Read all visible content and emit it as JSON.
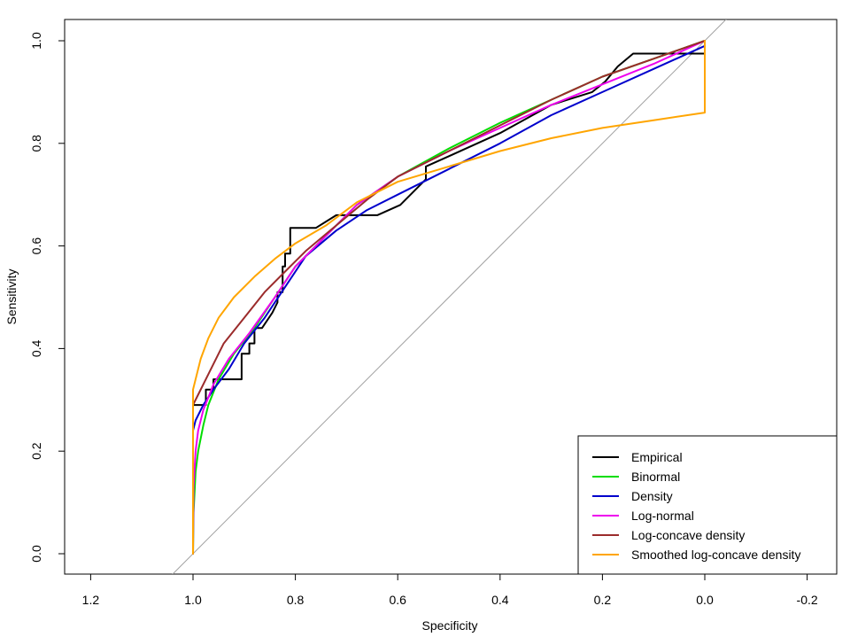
{
  "chart_data": {
    "type": "line",
    "title": "",
    "xlabel": "Specificity",
    "ylabel": "Sensitivity",
    "xlim": [
      1.2,
      -0.2
    ],
    "ylim": [
      0.0,
      1.0
    ],
    "x_ticks": [
      1.2,
      1.0,
      0.8,
      0.6,
      0.4,
      0.2,
      0.0,
      -0.2
    ],
    "x_tick_labels": [
      "1.2",
      "1.0",
      "0.8",
      "0.6",
      "0.4",
      "0.2",
      "0.0",
      "-0.2"
    ],
    "y_ticks": [
      0.0,
      0.2,
      0.4,
      0.6,
      0.8,
      1.0
    ],
    "y_tick_labels": [
      "0.0",
      "0.2",
      "0.4",
      "0.6",
      "0.8",
      "1.0"
    ],
    "grid": false,
    "legend_position": "bottom-right",
    "diagonal": {
      "color": "#a0a0a0",
      "from": [
        1.05,
        -0.05
      ],
      "to": [
        -0.05,
        1.05
      ]
    },
    "series": [
      {
        "name": "Empirical",
        "color": "#000000",
        "step": true,
        "points": [
          [
            1.0,
            0.0
          ],
          [
            1.0,
            0.29
          ],
          [
            0.975,
            0.29
          ],
          [
            0.975,
            0.32
          ],
          [
            0.96,
            0.32
          ],
          [
            0.96,
            0.34
          ],
          [
            0.905,
            0.34
          ],
          [
            0.905,
            0.39
          ],
          [
            0.89,
            0.39
          ],
          [
            0.89,
            0.41
          ],
          [
            0.88,
            0.41
          ],
          [
            0.88,
            0.44
          ],
          [
            0.865,
            0.44
          ],
          [
            0.845,
            0.47
          ],
          [
            0.835,
            0.49
          ],
          [
            0.835,
            0.51
          ],
          [
            0.825,
            0.51
          ],
          [
            0.825,
            0.56
          ],
          [
            0.82,
            0.56
          ],
          [
            0.82,
            0.585
          ],
          [
            0.81,
            0.585
          ],
          [
            0.81,
            0.635
          ],
          [
            0.76,
            0.635
          ],
          [
            0.72,
            0.66
          ],
          [
            0.64,
            0.66
          ],
          [
            0.595,
            0.68
          ],
          [
            0.545,
            0.73
          ],
          [
            0.545,
            0.755
          ],
          [
            0.5,
            0.775
          ],
          [
            0.4,
            0.82
          ],
          [
            0.3,
            0.875
          ],
          [
            0.22,
            0.9
          ],
          [
            0.195,
            0.92
          ],
          [
            0.17,
            0.95
          ],
          [
            0.14,
            0.975
          ],
          [
            0.06,
            0.975
          ],
          [
            0.06,
            0.975
          ],
          [
            0.0,
            0.975
          ],
          [
            0.0,
            1.0
          ]
        ]
      },
      {
        "name": "Binormal",
        "color": "#00dd00",
        "points": [
          [
            1.0,
            0.0
          ],
          [
            0.999,
            0.08
          ],
          [
            0.995,
            0.16
          ],
          [
            0.99,
            0.2
          ],
          [
            0.98,
            0.25
          ],
          [
            0.97,
            0.29
          ],
          [
            0.95,
            0.34
          ],
          [
            0.92,
            0.39
          ],
          [
            0.88,
            0.44
          ],
          [
            0.84,
            0.5
          ],
          [
            0.8,
            0.56
          ],
          [
            0.74,
            0.62
          ],
          [
            0.68,
            0.68
          ],
          [
            0.6,
            0.735
          ],
          [
            0.5,
            0.79
          ],
          [
            0.4,
            0.84
          ],
          [
            0.3,
            0.885
          ],
          [
            0.2,
            0.93
          ],
          [
            0.1,
            0.965
          ],
          [
            0.0,
            1.0
          ]
        ]
      },
      {
        "name": "Density",
        "color": "#0000cc",
        "points": [
          [
            1.0,
            0.24
          ],
          [
            0.995,
            0.26
          ],
          [
            0.98,
            0.29
          ],
          [
            0.96,
            0.32
          ],
          [
            0.93,
            0.36
          ],
          [
            0.9,
            0.41
          ],
          [
            0.86,
            0.46
          ],
          [
            0.82,
            0.52
          ],
          [
            0.78,
            0.58
          ],
          [
            0.72,
            0.63
          ],
          [
            0.66,
            0.67
          ],
          [
            0.6,
            0.7
          ],
          [
            0.5,
            0.75
          ],
          [
            0.4,
            0.8
          ],
          [
            0.3,
            0.855
          ],
          [
            0.2,
            0.9
          ],
          [
            0.1,
            0.945
          ],
          [
            0.0,
            0.99
          ]
        ]
      },
      {
        "name": "Log-normal",
        "color": "#ee00ee",
        "points": [
          [
            1.0,
            0.0
          ],
          [
            0.999,
            0.13
          ],
          [
            0.995,
            0.2
          ],
          [
            0.99,
            0.24
          ],
          [
            0.98,
            0.28
          ],
          [
            0.96,
            0.33
          ],
          [
            0.93,
            0.38
          ],
          [
            0.89,
            0.43
          ],
          [
            0.84,
            0.5
          ],
          [
            0.8,
            0.56
          ],
          [
            0.74,
            0.62
          ],
          [
            0.68,
            0.68
          ],
          [
            0.6,
            0.735
          ],
          [
            0.5,
            0.785
          ],
          [
            0.4,
            0.83
          ],
          [
            0.3,
            0.875
          ],
          [
            0.2,
            0.915
          ],
          [
            0.1,
            0.955
          ],
          [
            0.0,
            1.0
          ]
        ]
      },
      {
        "name": "Log-concave density",
        "color": "#9b2b2b",
        "points": [
          [
            1.0,
            0.0
          ],
          [
            1.0,
            0.29
          ],
          [
            0.99,
            0.31
          ],
          [
            0.97,
            0.35
          ],
          [
            0.94,
            0.41
          ],
          [
            0.9,
            0.46
          ],
          [
            0.86,
            0.51
          ],
          [
            0.82,
            0.55
          ],
          [
            0.78,
            0.59
          ],
          [
            0.72,
            0.64
          ],
          [
            0.66,
            0.69
          ],
          [
            0.6,
            0.735
          ],
          [
            0.5,
            0.785
          ],
          [
            0.4,
            0.835
          ],
          [
            0.3,
            0.885
          ],
          [
            0.2,
            0.93
          ],
          [
            0.1,
            0.965
          ],
          [
            0.0,
            1.0
          ]
        ]
      },
      {
        "name": "Smoothed log-concave density",
        "color": "#ffa500",
        "points": [
          [
            1.0,
            0.0
          ],
          [
            1.0,
            0.32
          ],
          [
            0.995,
            0.34
          ],
          [
            0.985,
            0.38
          ],
          [
            0.97,
            0.42
          ],
          [
            0.95,
            0.46
          ],
          [
            0.92,
            0.5
          ],
          [
            0.88,
            0.54
          ],
          [
            0.84,
            0.575
          ],
          [
            0.8,
            0.605
          ],
          [
            0.74,
            0.64
          ],
          [
            0.68,
            0.685
          ],
          [
            0.6,
            0.725
          ],
          [
            0.5,
            0.755
          ],
          [
            0.4,
            0.785
          ],
          [
            0.3,
            0.81
          ],
          [
            0.2,
            0.83
          ],
          [
            0.1,
            0.845
          ],
          [
            0.0,
            0.86
          ],
          [
            0.0,
            1.0
          ]
        ]
      }
    ]
  }
}
